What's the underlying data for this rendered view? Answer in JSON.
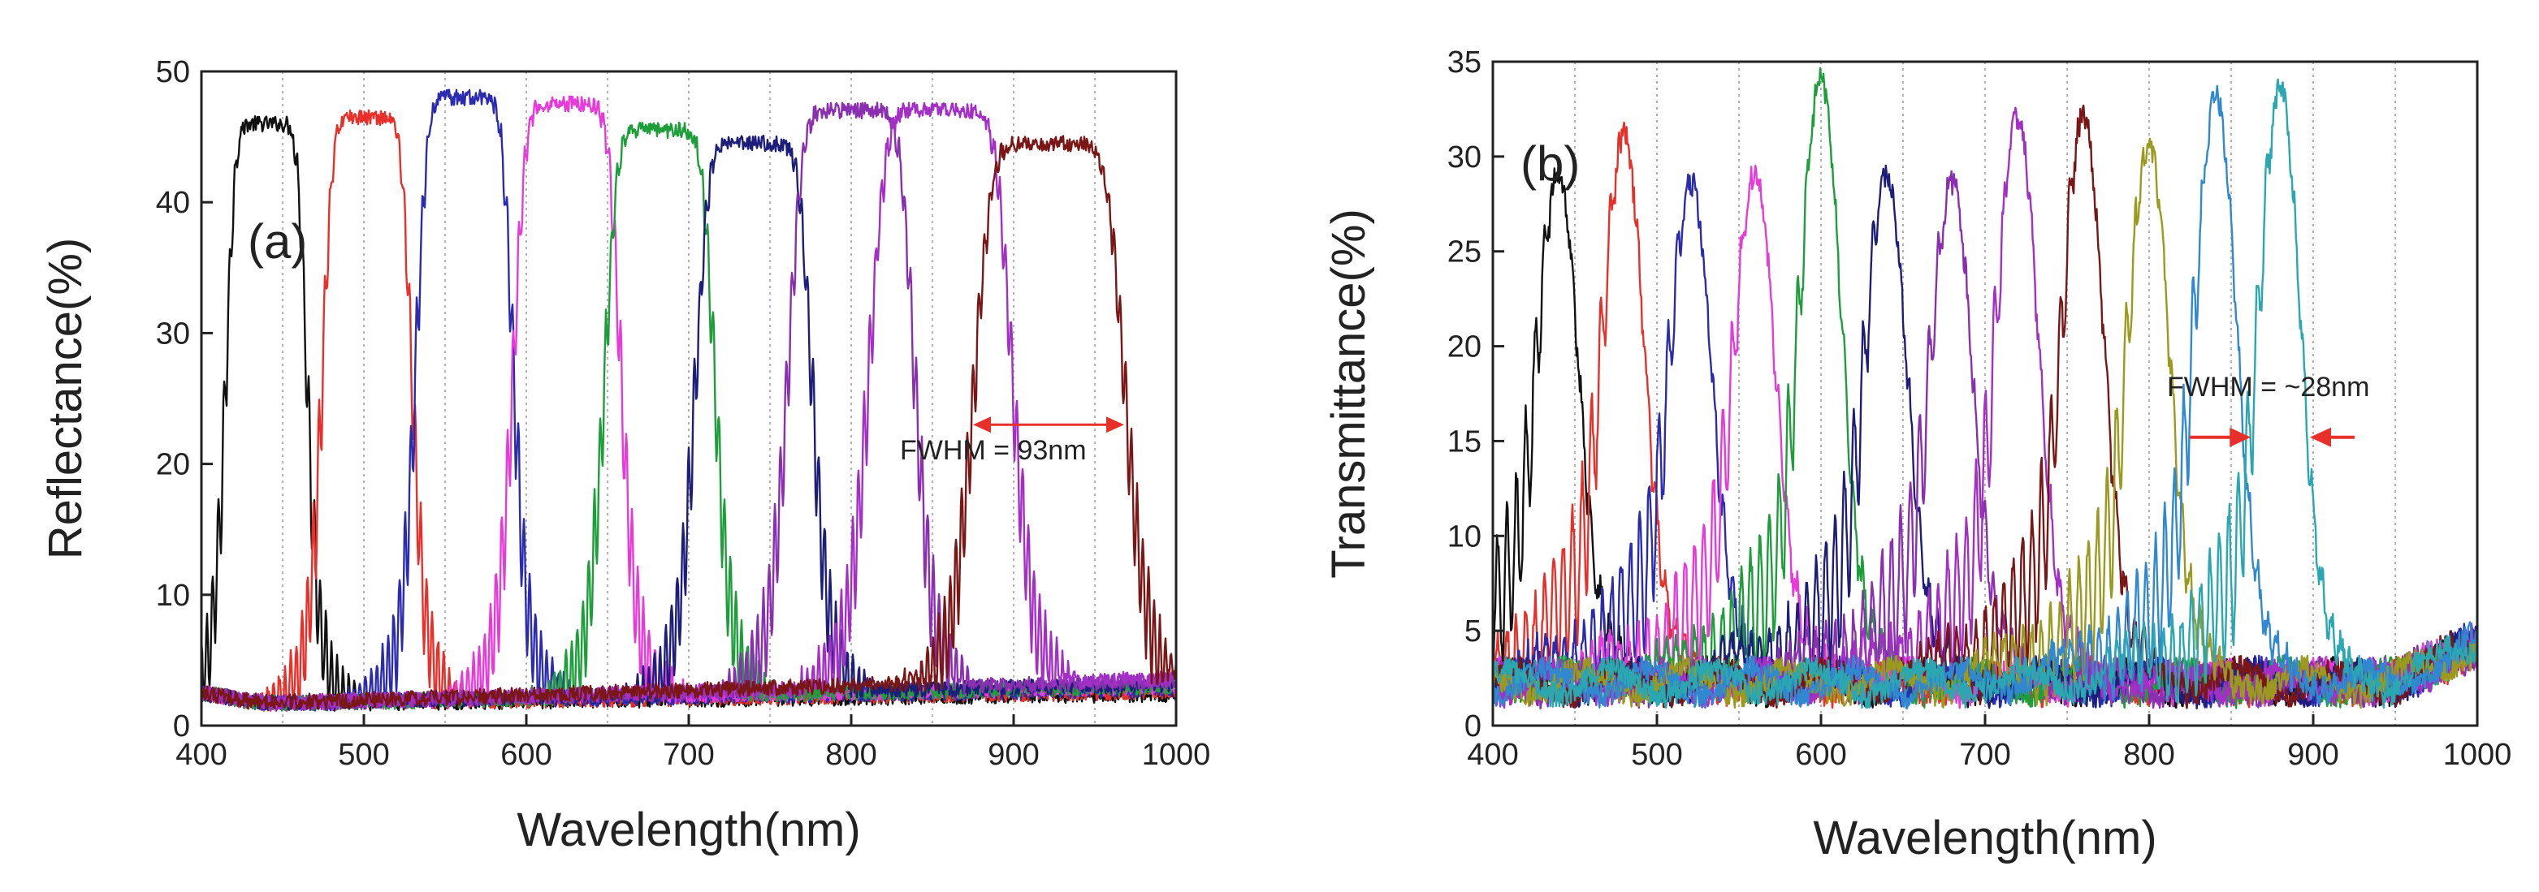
{
  "colors": {
    "black": "#111111",
    "red": "#e8302a",
    "blue": "#2b2bb0",
    "magenta": "#e63ad9",
    "green": "#1e9e3a",
    "navy": "#1d1d7a",
    "purple": "#8a2fb0",
    "violet": "#a32fc4",
    "maroon": "#7a1616",
    "olive": "#9a9a1e",
    "sky": "#2f88d0",
    "teal": "#2aa7b0",
    "arrow": "#e8302a",
    "grid": "#9a9a9a"
  },
  "chart_data": [
    {
      "type": "line",
      "panel": "(a)",
      "xlabel": "Wavelength(nm)",
      "ylabel": "Reflectance(%)",
      "xlim": [
        400,
        1000
      ],
      "ylim": [
        0,
        50
      ],
      "xticks": [
        400,
        500,
        600,
        700,
        800,
        900,
        1000
      ],
      "yticks": [
        0,
        10,
        20,
        30,
        40,
        50
      ],
      "x_tick_labels": [
        "400",
        "500",
        "600",
        "700",
        "800",
        "900",
        "1000"
      ],
      "y_tick_labels": [
        "0",
        "10",
        "20",
        "30",
        "40",
        "50"
      ],
      "grid_x": [
        450,
        500,
        550,
        600,
        650,
        700,
        750,
        800,
        850,
        900,
        950
      ],
      "grid": "vertical dotted",
      "annotation": {
        "text": "FWHM = 93nm",
        "arrow_x_range": [
          875,
          968
        ],
        "arrow_y": 23
      },
      "series": [
        {
          "name": "s1",
          "color": "black",
          "center": 440,
          "fwhm": 50,
          "peak": 46,
          "edge_top": 2.4
        },
        {
          "name": "s2",
          "color": "red",
          "center": 502,
          "fwhm": 55,
          "peak": 46.5,
          "edge_top": 2.6
        },
        {
          "name": "s3",
          "color": "blue",
          "center": 562,
          "fwhm": 60,
          "peak": 48,
          "edge_top": 2.8
        },
        {
          "name": "s4",
          "color": "magenta",
          "center": 625,
          "fwhm": 66,
          "peak": 47.5,
          "edge_top": 3.0
        },
        {
          "name": "s5",
          "color": "green",
          "center": 682,
          "fwhm": 68,
          "peak": 45.5,
          "edge_top": 3.0
        },
        {
          "name": "s6",
          "color": "navy",
          "center": 740,
          "fwhm": 72,
          "peak": 44.5,
          "edge_top": 3.2
        },
        {
          "name": "s7",
          "color": "purple",
          "center": 800,
          "fwhm": 78,
          "peak": 47,
          "edge_top": 3.4
        },
        {
          "name": "s8",
          "color": "violet",
          "center": 855,
          "fwhm": 88,
          "peak": 47,
          "edge_top": 3.6
        },
        {
          "name": "s9",
          "color": "maroon",
          "center": 922,
          "fwhm": 93,
          "peak": 44.5,
          "edge_top": 3.8
        }
      ]
    },
    {
      "type": "line",
      "panel": "(b)",
      "xlabel": "Wavelength(nm)",
      "ylabel": "Transmittance(%)",
      "xlim": [
        400,
        1000
      ],
      "ylim": [
        0,
        35
      ],
      "xticks": [
        400,
        500,
        600,
        700,
        800,
        900,
        1000
      ],
      "yticks": [
        0,
        5,
        10,
        15,
        20,
        25,
        30,
        35
      ],
      "x_tick_labels": [
        "400",
        "500",
        "600",
        "700",
        "800",
        "900",
        "1000"
      ],
      "y_tick_labels": [
        "0",
        "5",
        "10",
        "15",
        "20",
        "25",
        "30",
        "35"
      ],
      "grid_x": [
        450,
        500,
        550,
        600,
        650,
        700,
        750,
        800,
        850,
        900,
        950
      ],
      "grid": "vertical dotted",
      "annotation": {
        "text": "FWHM = ~28nm",
        "arrow_left_x": 862,
        "arrow_right_x": 898,
        "arrow_y": 15.2
      },
      "series": [
        {
          "name": "t1",
          "color": "black",
          "center": 440,
          "fwhm": 28,
          "peak": 27.5
        },
        {
          "name": "t2",
          "color": "red",
          "center": 480,
          "fwhm": 28,
          "peak": 29.5
        },
        {
          "name": "t3",
          "color": "blue",
          "center": 521,
          "fwhm": 28,
          "peak": 27
        },
        {
          "name": "t4",
          "color": "magenta",
          "center": 560,
          "fwhm": 28,
          "peak": 27.5
        },
        {
          "name": "t5",
          "color": "green",
          "center": 600,
          "fwhm": 28,
          "peak": 32.5
        },
        {
          "name": "t6",
          "color": "navy",
          "center": 640,
          "fwhm": 28,
          "peak": 27.5
        },
        {
          "name": "t7",
          "color": "purple",
          "center": 680,
          "fwhm": 28,
          "peak": 27
        },
        {
          "name": "t8",
          "color": "violet",
          "center": 720,
          "fwhm": 28,
          "peak": 30.5
        },
        {
          "name": "t9",
          "color": "maroon",
          "center": 760,
          "fwhm": 28,
          "peak": 30.5
        },
        {
          "name": "t10",
          "color": "olive",
          "center": 800,
          "fwhm": 28,
          "peak": 29
        },
        {
          "name": "t11",
          "color": "sky",
          "center": 841,
          "fwhm": 28,
          "peak": 31.5
        },
        {
          "name": "t12",
          "color": "teal",
          "center": 880,
          "fwhm": 28,
          "peak": 32
        }
      ]
    }
  ]
}
